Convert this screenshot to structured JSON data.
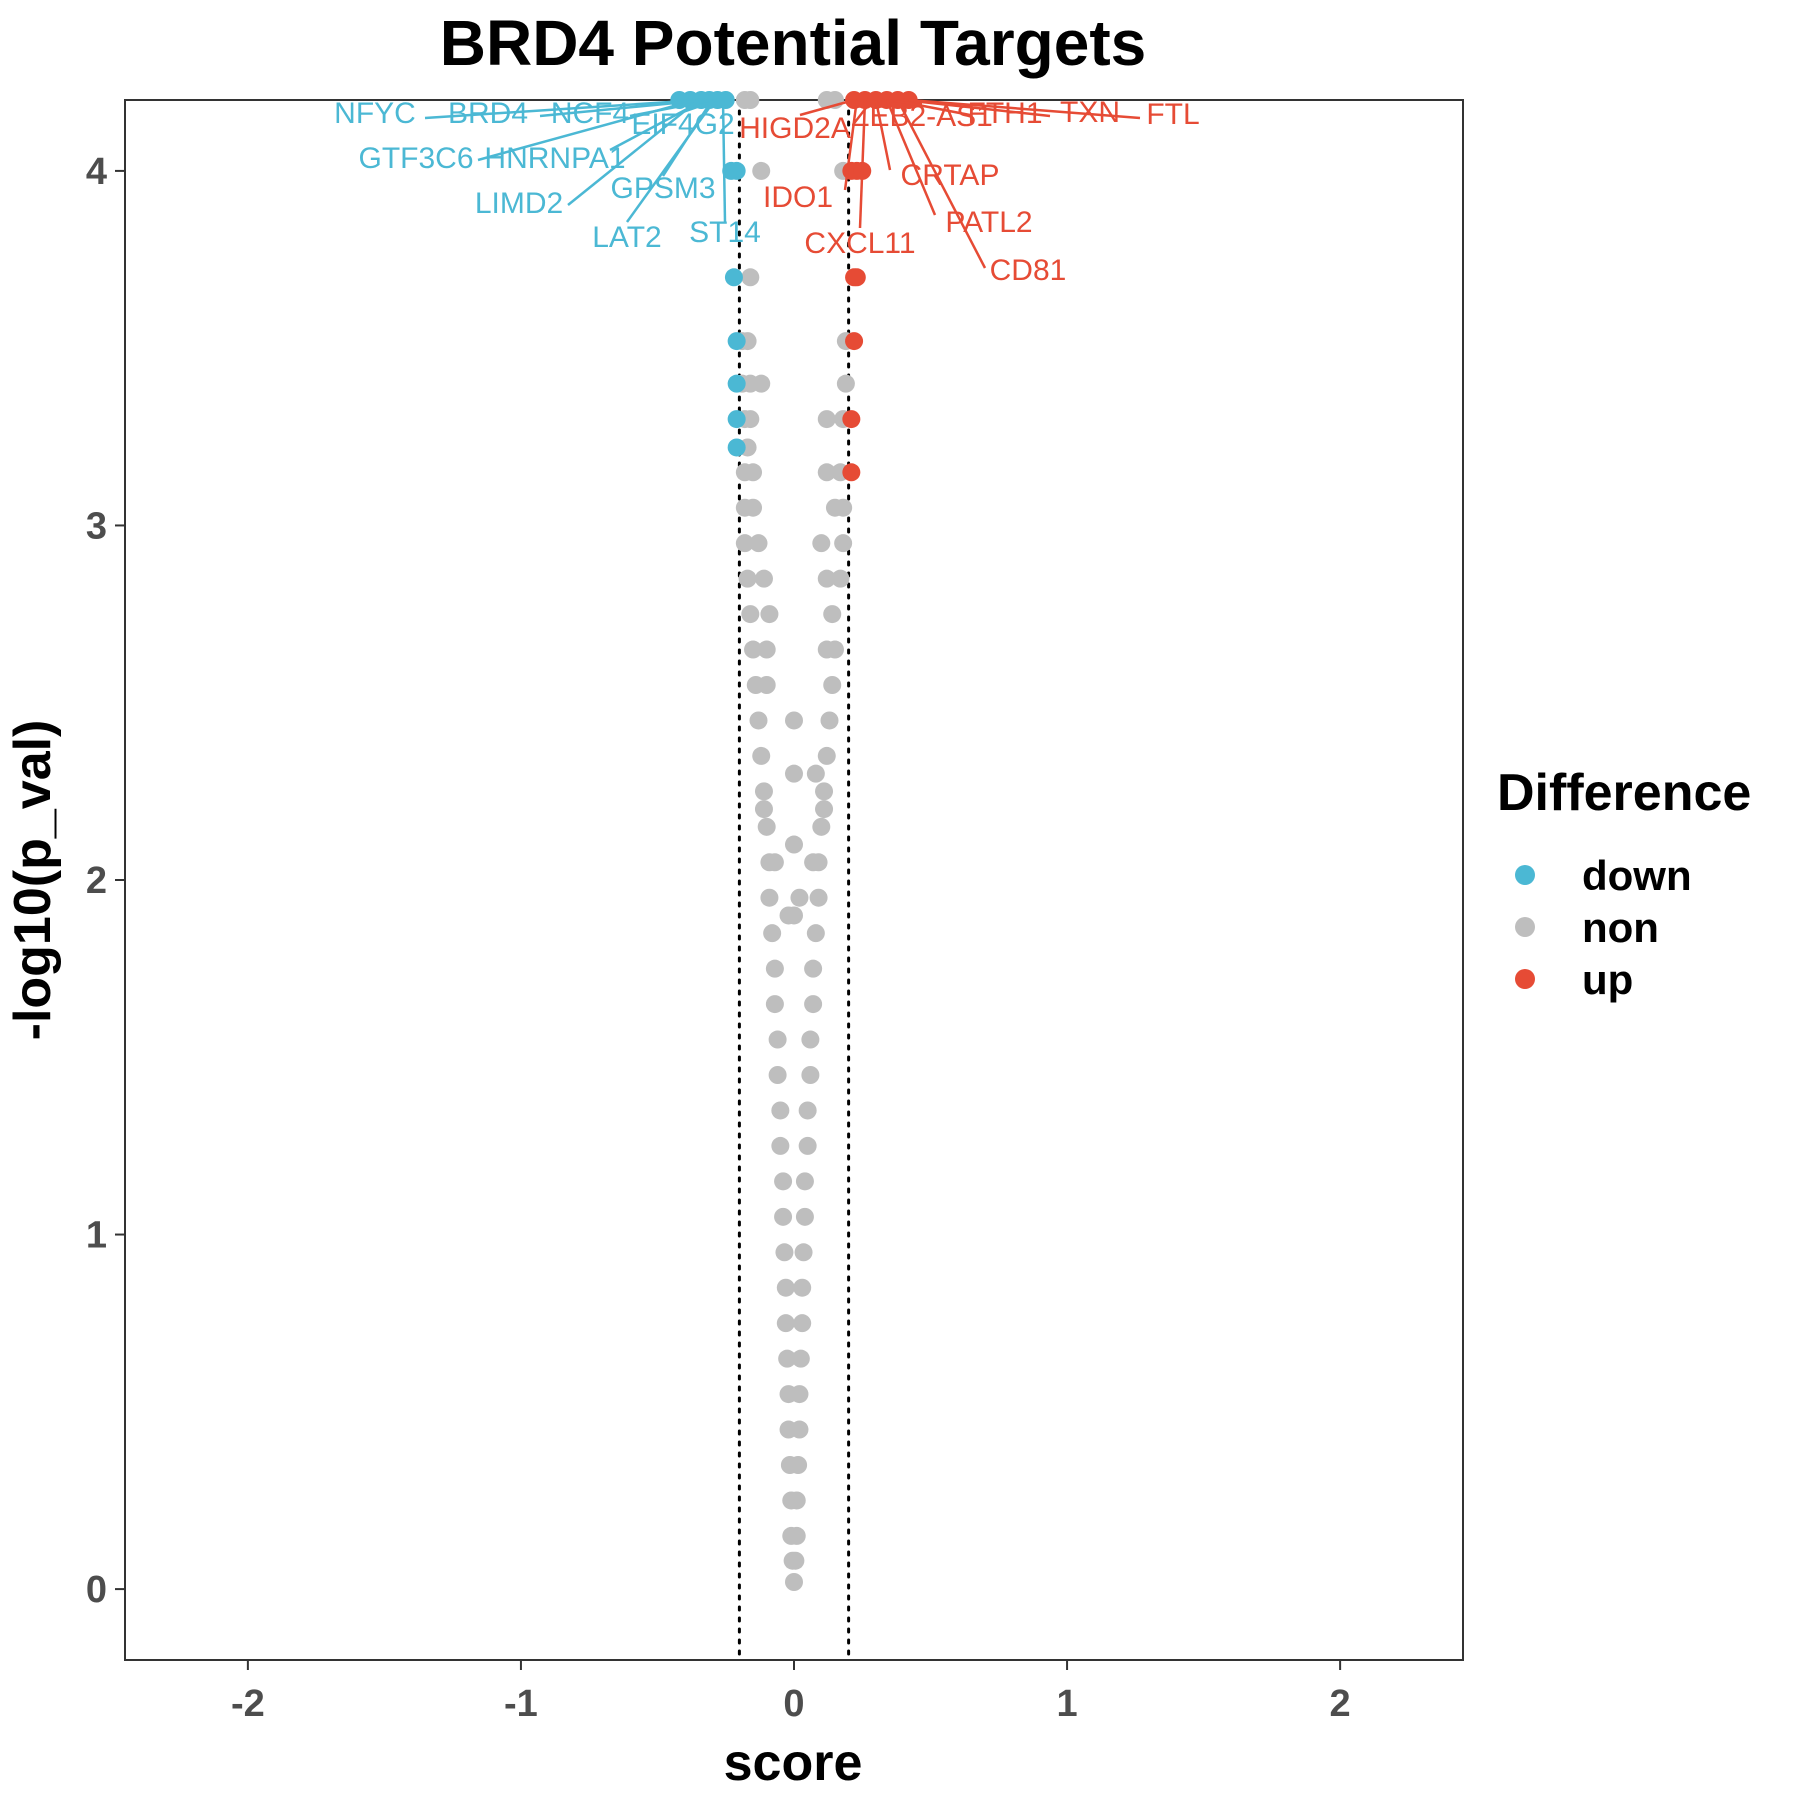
{
  "chart_data": {
    "type": "scatter",
    "title": "BRD4 Potential Targets",
    "xlabel": "score",
    "ylabel": "-log10(p_val)",
    "xlim": [
      -2.45,
      2.45
    ],
    "ylim": [
      -0.2,
      4.2
    ],
    "xticks": [
      "-2",
      "-1",
      "0",
      "1",
      "2"
    ],
    "yticks": [
      "0",
      "1",
      "2",
      "3",
      "4"
    ],
    "thresholds": [
      -0.2,
      0.2
    ],
    "grid": false,
    "legend": {
      "title": "Difference",
      "position": "right",
      "entries": [
        {
          "label": "down",
          "color": "#4BB8D4"
        },
        {
          "label": "non",
          "color": "#BEBEBE"
        },
        {
          "label": "up",
          "color": "#E64B35"
        }
      ]
    },
    "series": [
      {
        "name": "down",
        "color": "#4BB8D4",
        "points": [
          [
            -0.42,
            4.2
          ],
          [
            -0.38,
            4.2
          ],
          [
            -0.34,
            4.2
          ],
          [
            -0.31,
            4.2
          ],
          [
            -0.28,
            4.2
          ],
          [
            -0.25,
            4.2
          ],
          [
            -0.23,
            4.0
          ],
          [
            -0.21,
            4.0
          ],
          [
            -0.22,
            3.7
          ],
          [
            -0.21,
            3.52
          ],
          [
            -0.21,
            3.4
          ],
          [
            -0.21,
            3.3
          ],
          [
            -0.21,
            3.22
          ]
        ]
      },
      {
        "name": "non",
        "color": "#BEBEBE",
        "points": [
          [
            -0.18,
            4.2
          ],
          [
            -0.16,
            4.2
          ],
          [
            -0.12,
            4.0
          ],
          [
            -0.16,
            3.7
          ],
          [
            -0.19,
            3.52
          ],
          [
            -0.17,
            3.52
          ],
          [
            -0.19,
            3.4
          ],
          [
            -0.16,
            3.4
          ],
          [
            -0.12,
            3.4
          ],
          [
            -0.18,
            3.3
          ],
          [
            -0.16,
            3.3
          ],
          [
            -0.17,
            3.22
          ],
          [
            -0.18,
            3.15
          ],
          [
            -0.15,
            3.15
          ],
          [
            -0.18,
            3.05
          ],
          [
            -0.15,
            3.05
          ],
          [
            -0.13,
            2.95
          ],
          [
            -0.18,
            2.95
          ],
          [
            -0.11,
            2.85
          ],
          [
            -0.17,
            2.85
          ],
          [
            -0.09,
            2.75
          ],
          [
            -0.16,
            2.75
          ],
          [
            -0.1,
            2.65
          ],
          [
            -0.15,
            2.65
          ],
          [
            -0.1,
            2.55
          ],
          [
            -0.14,
            2.55
          ],
          [
            -0.13,
            2.45
          ],
          [
            -0.12,
            2.35
          ],
          [
            -0.11,
            2.25
          ],
          [
            -0.1,
            2.15
          ],
          [
            -0.09,
            2.05
          ],
          [
            -0.09,
            1.95
          ],
          [
            -0.08,
            1.85
          ],
          [
            -0.07,
            1.75
          ],
          [
            -0.07,
            1.65
          ],
          [
            -0.06,
            1.55
          ],
          [
            -0.06,
            1.45
          ],
          [
            -0.05,
            1.35
          ],
          [
            -0.05,
            1.25
          ],
          [
            -0.04,
            1.15
          ],
          [
            -0.04,
            1.05
          ],
          [
            -0.035,
            0.95
          ],
          [
            -0.03,
            0.85
          ],
          [
            -0.03,
            0.75
          ],
          [
            -0.025,
            0.65
          ],
          [
            -0.02,
            0.55
          ],
          [
            -0.02,
            0.45
          ],
          [
            -0.015,
            0.35
          ],
          [
            -0.01,
            0.25
          ],
          [
            -0.01,
            0.15
          ],
          [
            -0.005,
            0.08
          ],
          [
            0.0,
            0.02
          ],
          [
            0.005,
            0.08
          ],
          [
            0.01,
            0.15
          ],
          [
            0.01,
            0.25
          ],
          [
            0.015,
            0.35
          ],
          [
            0.02,
            0.45
          ],
          [
            0.02,
            0.55
          ],
          [
            0.025,
            0.65
          ],
          [
            0.03,
            0.75
          ],
          [
            0.03,
            0.85
          ],
          [
            0.035,
            0.95
          ],
          [
            0.04,
            1.05
          ],
          [
            0.04,
            1.15
          ],
          [
            0.05,
            1.25
          ],
          [
            0.05,
            1.35
          ],
          [
            0.06,
            1.45
          ],
          [
            0.06,
            1.55
          ],
          [
            0.07,
            1.65
          ],
          [
            0.07,
            1.75
          ],
          [
            0.08,
            1.85
          ],
          [
            0.09,
            1.95
          ],
          [
            0.09,
            2.05
          ],
          [
            0.1,
            2.15
          ],
          [
            0.11,
            2.25
          ],
          [
            0.12,
            2.35
          ],
          [
            0.13,
            2.45
          ],
          [
            0.14,
            2.55
          ],
          [
            0.12,
            2.65
          ],
          [
            0.15,
            2.65
          ],
          [
            0.14,
            2.75
          ],
          [
            0.17,
            2.85
          ],
          [
            0.12,
            2.85
          ],
          [
            0.18,
            2.95
          ],
          [
            0.1,
            2.95
          ],
          [
            0.15,
            3.05
          ],
          [
            0.18,
            3.05
          ],
          [
            0.12,
            3.15
          ],
          [
            0.17,
            3.15
          ],
          [
            0.18,
            3.3
          ],
          [
            0.12,
            3.3
          ],
          [
            0.19,
            3.4
          ],
          [
            0.19,
            3.52
          ],
          [
            0.18,
            4.0
          ],
          [
            0.12,
            4.2
          ],
          [
            0.15,
            4.2
          ],
          [
            -0.11,
            2.2
          ],
          [
            -0.07,
            2.05
          ],
          [
            0.0,
            2.45
          ],
          [
            0.0,
            2.3
          ],
          [
            0.0,
            2.1
          ],
          [
            0.0,
            1.9
          ],
          [
            0.02,
            1.95
          ],
          [
            -0.02,
            1.9
          ],
          [
            0.08,
            2.3
          ],
          [
            0.11,
            2.2
          ],
          [
            0.07,
            2.05
          ]
        ]
      },
      {
        "name": "up",
        "color": "#E64B35",
        "points": [
          [
            0.22,
            4.2
          ],
          [
            0.26,
            4.2
          ],
          [
            0.3,
            4.2
          ],
          [
            0.34,
            4.2
          ],
          [
            0.38,
            4.2
          ],
          [
            0.42,
            4.2
          ],
          [
            0.21,
            4.0
          ],
          [
            0.23,
            4.0
          ],
          [
            0.25,
            4.0
          ],
          [
            0.22,
            3.7
          ],
          [
            0.23,
            3.7
          ],
          [
            0.22,
            3.52
          ],
          [
            0.21,
            3.3
          ],
          [
            0.21,
            3.15
          ]
        ]
      }
    ],
    "annotations": [
      {
        "text": "NFYC",
        "group": "down",
        "x": -0.34,
        "y": 4.2
      },
      {
        "text": "BRD4",
        "group": "down",
        "x": -0.32,
        "y": 4.2
      },
      {
        "text": "NCF4",
        "group": "down",
        "x": -0.3,
        "y": 4.2
      },
      {
        "text": "EIF4G2",
        "group": "down",
        "x": -0.28,
        "y": 4.2
      },
      {
        "text": "GTF3C6",
        "group": "down",
        "x": -0.36,
        "y": 4.2
      },
      {
        "text": "HNRNPA1",
        "group": "down",
        "x": -0.33,
        "y": 4.2
      },
      {
        "text": "GPSM3",
        "group": "down",
        "x": -0.3,
        "y": 4.2
      },
      {
        "text": "LIMD2",
        "group": "down",
        "x": -0.35,
        "y": 4.2
      },
      {
        "text": "LAT2",
        "group": "down",
        "x": -0.29,
        "y": 4.2
      },
      {
        "text": "ST14",
        "group": "down",
        "x": -0.26,
        "y": 4.2
      },
      {
        "text": "HIGD2A",
        "group": "up",
        "x": 0.22,
        "y": 4.2
      },
      {
        "text": "ZEB2-AS1",
        "group": "up",
        "x": 0.32,
        "y": 4.2
      },
      {
        "text": "FTH1",
        "group": "up",
        "x": 0.36,
        "y": 4.2
      },
      {
        "text": "TXN",
        "group": "up",
        "x": 0.4,
        "y": 4.2
      },
      {
        "text": "FTL",
        "group": "up",
        "x": 0.42,
        "y": 4.2
      },
      {
        "text": "CRTAP",
        "group": "up",
        "x": 0.3,
        "y": 4.2
      },
      {
        "text": "IDO1",
        "group": "up",
        "x": 0.23,
        "y": 4.2
      },
      {
        "text": "CXCL11",
        "group": "up",
        "x": 0.26,
        "y": 4.2
      },
      {
        "text": "PATL2",
        "group": "up",
        "x": 0.34,
        "y": 4.2
      },
      {
        "text": "CD81",
        "group": "up",
        "x": 0.38,
        "y": 4.2
      }
    ]
  }
}
